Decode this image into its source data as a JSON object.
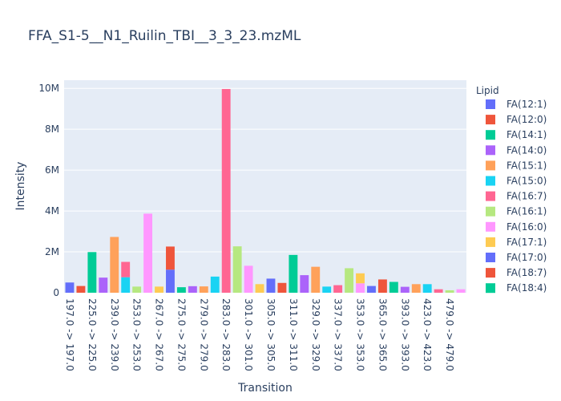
{
  "chart_data": {
    "type": "bar",
    "title": "FFA_S1-5__N1_Ruilin_TBI__3_3_23.mzML",
    "xlabel": "Transition",
    "ylabel": "Intensity",
    "ylim": [
      0,
      10400000
    ],
    "y_ticks": [
      0,
      2000000,
      4000000,
      6000000,
      8000000,
      10000000
    ],
    "y_tick_labels": [
      "0",
      "2M",
      "4M",
      "6M",
      "8M",
      "10M"
    ],
    "grid": true,
    "legend_position": "right",
    "legend_title": "Lipid",
    "x_tick_labels": [
      "197.0 -> 197.0",
      "225.0 -> 225.0",
      "239.0 -> 239.0",
      "253.0 -> 253.0",
      "267.0 -> 267.0",
      "275.0 -> 275.0",
      "279.0 -> 279.0",
      "283.0 -> 283.0",
      "301.0 -> 301.0",
      "305.0 -> 305.0",
      "311.0 -> 311.0",
      "329.0 -> 329.0",
      "337.0 -> 337.0",
      "353.0 -> 353.0",
      "365.0 -> 365.0",
      "393.0 -> 393.0",
      "423.0 -> 423.0",
      "479.0 -> 479.0"
    ],
    "series": [
      {
        "name": "FA(12:1)",
        "color": "#636efa"
      },
      {
        "name": "FA(12:0)",
        "color": "#ef553b"
      },
      {
        "name": "FA(14:1)",
        "color": "#00cc96"
      },
      {
        "name": "FA(14:0)",
        "color": "#ab63fa"
      },
      {
        "name": "FA(15:1)",
        "color": "#ffa15a"
      },
      {
        "name": "FA(15:0)",
        "color": "#19d3f3"
      },
      {
        "name": "FA(16:7)",
        "color": "#ff6692"
      },
      {
        "name": "FA(16:1)",
        "color": "#b6e880"
      },
      {
        "name": "FA(16:0)",
        "color": "#ff97ff"
      },
      {
        "name": "FA(17:1)",
        "color": "#fecb52"
      },
      {
        "name": "FA(17:0)",
        "color": "#636efa"
      },
      {
        "name": "FA(18:7)",
        "color": "#ef553b"
      },
      {
        "name": "FA(18:4)",
        "color": "#00cc96"
      }
    ],
    "bars": [
      {
        "x": 0,
        "value": 500000,
        "color": "#636efa"
      },
      {
        "x": 1,
        "value": 330000,
        "color": "#ef553b"
      },
      {
        "x": 2,
        "value": 1990000,
        "color": "#00cc96"
      },
      {
        "x": 3,
        "value": 740000,
        "color": "#ab63fa"
      },
      {
        "x": 4,
        "value": 2730000,
        "color": "#ffa15a"
      },
      {
        "x": 5,
        "value": 760000,
        "color": "#19d3f3"
      },
      {
        "x": 5,
        "value": 1510000,
        "base": 760000,
        "color": "#ff6692"
      },
      {
        "x": 6,
        "value": 300000,
        "color": "#b6e880"
      },
      {
        "x": 7,
        "value": 3870000,
        "color": "#ff97ff"
      },
      {
        "x": 8,
        "value": 300000,
        "color": "#fecb52"
      },
      {
        "x": 9,
        "value": 1130000,
        "color": "#636efa"
      },
      {
        "x": 9,
        "value": 2260000,
        "base": 1130000,
        "color": "#ef553b"
      },
      {
        "x": 10,
        "value": 270000,
        "color": "#00cc96"
      },
      {
        "x": 11,
        "value": 320000,
        "color": "#ab63fa"
      },
      {
        "x": 12,
        "value": 310000,
        "color": "#ffa15a"
      },
      {
        "x": 13,
        "value": 790000,
        "color": "#19d3f3"
      },
      {
        "x": 14,
        "value": 9970000,
        "color": "#ff6692"
      },
      {
        "x": 15,
        "value": 2270000,
        "color": "#b6e880"
      },
      {
        "x": 16,
        "value": 1320000,
        "color": "#ff97ff"
      },
      {
        "x": 17,
        "value": 420000,
        "color": "#fecb52"
      },
      {
        "x": 18,
        "value": 690000,
        "color": "#636efa"
      },
      {
        "x": 19,
        "value": 480000,
        "color": "#ef553b"
      },
      {
        "x": 20,
        "value": 1850000,
        "color": "#00cc96"
      },
      {
        "x": 21,
        "value": 860000,
        "color": "#ab63fa"
      },
      {
        "x": 22,
        "value": 1270000,
        "color": "#ffa15a"
      },
      {
        "x": 23,
        "value": 300000,
        "color": "#19d3f3"
      },
      {
        "x": 24,
        "value": 370000,
        "color": "#ff6692"
      },
      {
        "x": 25,
        "value": 1200000,
        "color": "#b6e880"
      },
      {
        "x": 26,
        "value": 460000,
        "color": "#ff97ff"
      },
      {
        "x": 26,
        "value": 950000,
        "base": 460000,
        "color": "#fecb52"
      },
      {
        "x": 27,
        "value": 330000,
        "color": "#636efa"
      },
      {
        "x": 28,
        "value": 650000,
        "color": "#ef553b"
      },
      {
        "x": 29,
        "value": 530000,
        "color": "#00cc96"
      },
      {
        "x": 30,
        "value": 290000,
        "color": "#ab63fa"
      },
      {
        "x": 31,
        "value": 420000,
        "color": "#ffa15a"
      },
      {
        "x": 32,
        "value": 420000,
        "color": "#19d3f3"
      },
      {
        "x": 33,
        "value": 170000,
        "color": "#ff6692"
      },
      {
        "x": 34,
        "value": 120000,
        "color": "#b6e880"
      },
      {
        "x": 35,
        "value": 170000,
        "color": "#ff97ff"
      }
    ]
  }
}
